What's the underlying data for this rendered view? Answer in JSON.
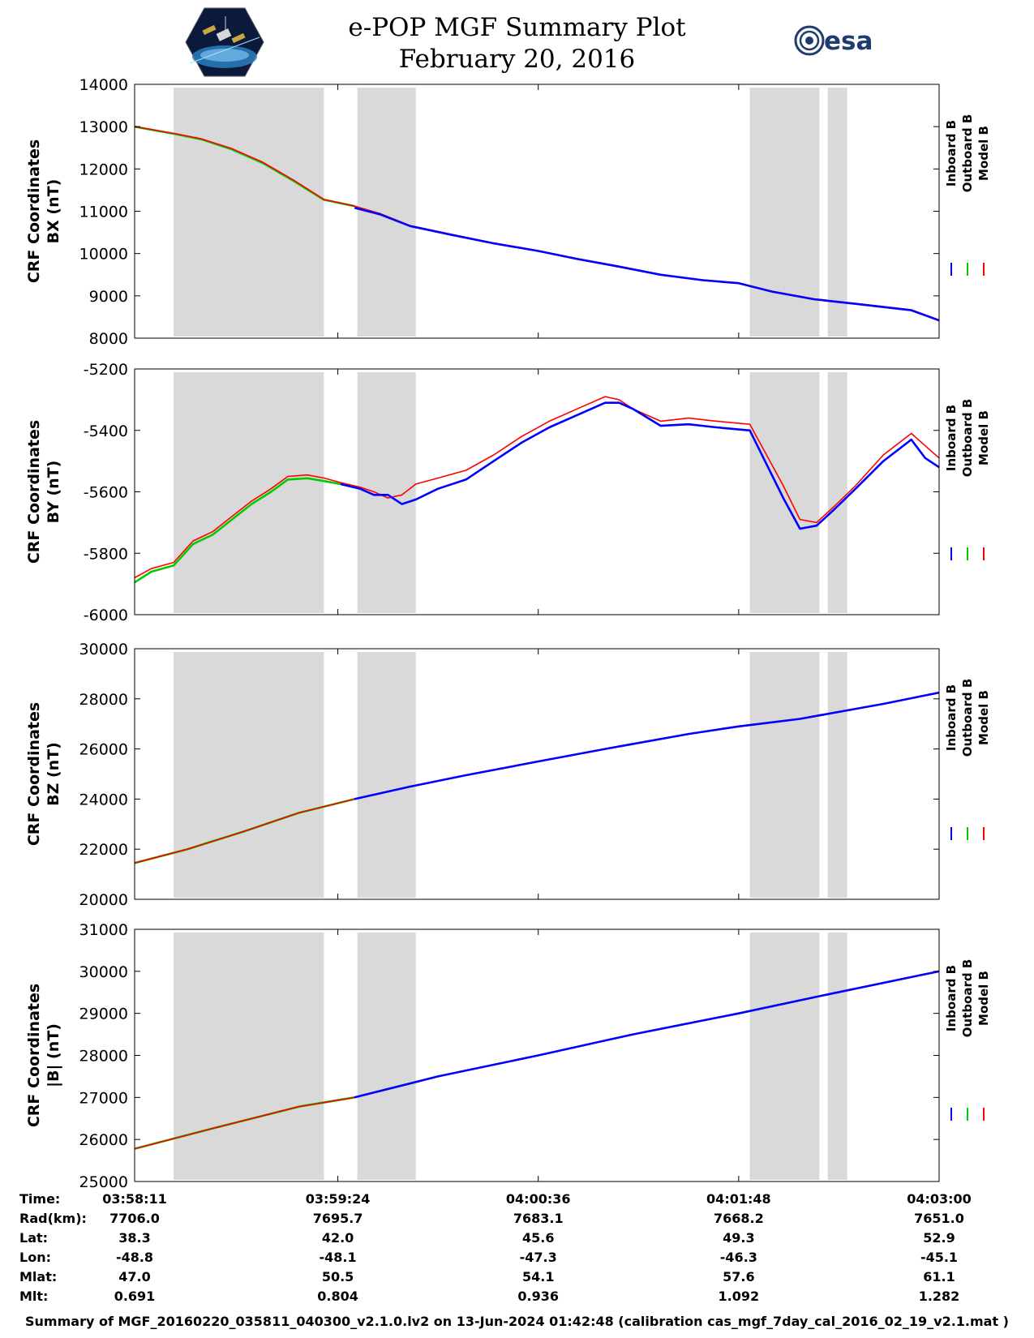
{
  "header": {
    "title_line1": "e-POP MGF Summary Plot",
    "title_line2": "February 20, 2016",
    "logo_left": "cassiope-mission-logo",
    "logo_right_text": "esa"
  },
  "legend": {
    "labels": [
      "Inboard B",
      "Outboard B",
      "Model B"
    ],
    "colors": [
      "#0000ff",
      "#00cc00",
      "#ff0000"
    ]
  },
  "shading": {
    "color": "#d9d9d9",
    "intervals": [
      [
        "03:58:25",
        "03:59:19"
      ],
      [
        "03:59:31",
        "03:59:52"
      ],
      [
        "04:01:52",
        "04:02:17"
      ],
      [
        "04:02:20",
        "04:02:27"
      ]
    ]
  },
  "chart_data": [
    {
      "type": "line",
      "ylabel_line1": "CRF Coordinates",
      "ylabel_line2": "BX (nT)",
      "ylim": [
        8000,
        14000
      ],
      "yticks": [
        "8000",
        "9000",
        "10000",
        "11000",
        "12000",
        "13000",
        "14000"
      ],
      "x": [
        "03:58:11",
        "03:58:26",
        "03:58:35",
        "03:58:46",
        "03:58:57",
        "03:59:08",
        "03:59:19",
        "03:59:30",
        "03:59:39",
        "03:59:50",
        "04:00:05",
        "04:00:20",
        "04:00:36",
        "04:00:50",
        "04:01:05",
        "04:01:20",
        "04:01:35",
        "04:01:48",
        "04:02:00",
        "04:02:15",
        "04:02:30",
        "04:02:50",
        "04:03:00"
      ],
      "series": [
        {
          "name": "Outboard B",
          "color": "#00cc00",
          "values": [
            13000,
            12820,
            12700,
            12460,
            12140,
            11720,
            11270,
            11120,
            null,
            null,
            null,
            null,
            null,
            null,
            null,
            null,
            null,
            null,
            null,
            null,
            null,
            null,
            null
          ]
        },
        {
          "name": "Model B",
          "color": "#ff0000",
          "values": [
            13000,
            12830,
            12710,
            12480,
            12160,
            11740,
            11280,
            11120,
            10950,
            10660,
            10450,
            10250,
            10070,
            9880,
            9700,
            9500,
            9380,
            9300,
            9110,
            8930,
            8820,
            8670,
            8430
          ]
        },
        {
          "name": "Inboard B",
          "color": "#0000ff",
          "values": [
            null,
            null,
            null,
            null,
            null,
            null,
            null,
            11080,
            10930,
            10650,
            10440,
            10240,
            10060,
            9870,
            9690,
            9500,
            9370,
            9300,
            9100,
            8920,
            8810,
            8660,
            8420
          ]
        }
      ]
    },
    {
      "type": "line",
      "ylabel_line1": "CRF Coordinates",
      "ylabel_line2": "BY (nT)",
      "ylim": [
        -6000,
        -5200
      ],
      "yticks": [
        "-6000",
        "-5800",
        "-5600",
        "-5400",
        "-5200"
      ],
      "x": [
        "03:58:11",
        "03:58:17",
        "03:58:25",
        "03:58:32",
        "03:58:39",
        "03:58:46",
        "03:58:53",
        "03:59:00",
        "03:59:06",
        "03:59:13",
        "03:59:19",
        "03:59:25",
        "03:59:32",
        "03:59:37",
        "03:59:42",
        "03:59:47",
        "03:59:52",
        "04:00:00",
        "04:00:10",
        "04:00:20",
        "04:00:30",
        "04:00:40",
        "04:00:50",
        "04:01:00",
        "04:01:05",
        "04:01:10",
        "04:01:20",
        "04:01:30",
        "04:01:40",
        "04:01:52",
        "04:01:58",
        "04:02:04",
        "04:02:10",
        "04:02:16",
        "04:02:22",
        "04:02:30",
        "04:02:40",
        "04:02:50",
        "04:02:55",
        "04:03:00"
      ],
      "series": [
        {
          "name": "Outboard B",
          "color": "#00cc00",
          "values": [
            -5895,
            -5860,
            -5840,
            -5770,
            -5740,
            -5690,
            -5640,
            -5600,
            -5560,
            -5556,
            -5565,
            -5575,
            null,
            null,
            null,
            null,
            null,
            null,
            null,
            null,
            null,
            null,
            null,
            null,
            null,
            null,
            null,
            null,
            null,
            null,
            null,
            null,
            null,
            null,
            null,
            null,
            null,
            null,
            null,
            null
          ]
        },
        {
          "name": "Model B",
          "color": "#ff0000",
          "values": [
            -5880,
            -5850,
            -5830,
            -5760,
            -5730,
            -5680,
            -5630,
            -5590,
            -5550,
            -5545,
            -5555,
            -5570,
            -5585,
            -5600,
            -5620,
            -5610,
            -5575,
            -5555,
            -5530,
            -5480,
            -5420,
            -5370,
            -5330,
            -5290,
            -5300,
            -5330,
            -5370,
            -5360,
            -5370,
            -5380,
            -5480,
            -5580,
            -5690,
            -5700,
            -5650,
            -5580,
            -5480,
            -5410,
            -5450,
            -5490
          ]
        },
        {
          "name": "Inboard B",
          "color": "#0000ff",
          "values": [
            null,
            null,
            null,
            null,
            null,
            null,
            null,
            null,
            null,
            null,
            null,
            -5575,
            -5590,
            -5610,
            -5610,
            -5640,
            -5625,
            -5590,
            -5560,
            -5500,
            -5440,
            -5390,
            -5350,
            -5310,
            -5310,
            -5330,
            -5385,
            -5380,
            -5390,
            -5400,
            -5510,
            -5620,
            -5720,
            -5710,
            -5660,
            -5590,
            -5500,
            -5430,
            -5490,
            -5520
          ]
        }
      ]
    },
    {
      "type": "line",
      "ylabel_line1": "CRF Coordinates",
      "ylabel_line2": "BZ (nT)",
      "ylim": [
        20000,
        30000
      ],
      "yticks": [
        "20000",
        "22000",
        "24000",
        "26000",
        "28000",
        "30000"
      ],
      "x": [
        "03:58:11",
        "03:58:30",
        "03:58:50",
        "03:59:10",
        "03:59:30",
        "03:59:50",
        "04:00:10",
        "04:00:36",
        "04:01:00",
        "04:01:30",
        "04:01:48",
        "04:02:10",
        "04:02:40",
        "04:03:00"
      ],
      "series": [
        {
          "name": "Outboard B",
          "color": "#00cc00",
          "values": [
            21450,
            22000,
            22700,
            23450,
            24000,
            null,
            null,
            null,
            null,
            null,
            null,
            null,
            null,
            null
          ]
        },
        {
          "name": "Model B",
          "color": "#ff0000",
          "values": [
            21450,
            22000,
            22700,
            23450,
            24000,
            24500,
            24950,
            25500,
            26000,
            26600,
            26900,
            27200,
            27800,
            28250
          ]
        },
        {
          "name": "Inboard B",
          "color": "#0000ff",
          "values": [
            null,
            null,
            null,
            null,
            24000,
            24500,
            24950,
            25500,
            26000,
            26600,
            26900,
            27200,
            27800,
            28250
          ]
        }
      ]
    },
    {
      "type": "line",
      "ylabel_line1": "CRF Coordinates",
      "ylabel_line2": "|B| (nT)",
      "ylim": [
        25000,
        31000
      ],
      "yticks": [
        "25000",
        "26000",
        "27000",
        "28000",
        "29000",
        "30000",
        "31000"
      ],
      "x": [
        "03:58:11",
        "03:58:40",
        "03:59:10",
        "03:59:30",
        "04:00:00",
        "04:00:36",
        "04:01:10",
        "04:01:48",
        "04:02:20",
        "04:03:00"
      ],
      "series": [
        {
          "name": "Outboard B",
          "color": "#00cc00",
          "values": [
            25780,
            26280,
            26780,
            27000,
            null,
            null,
            null,
            null,
            null,
            null
          ]
        },
        {
          "name": "Model B",
          "color": "#ff0000",
          "values": [
            25780,
            26280,
            26780,
            27000,
            27500,
            28000,
            28500,
            29000,
            29450,
            30000
          ]
        },
        {
          "name": "Inboard B",
          "color": "#0000ff",
          "values": [
            null,
            null,
            null,
            27000,
            27500,
            28000,
            28500,
            29000,
            29450,
            30000
          ]
        }
      ]
    }
  ],
  "x_axis": {
    "start": "03:58:11",
    "end": "04:03:00",
    "ticks": [
      "03:58:11",
      "03:59:24",
      "04:00:36",
      "04:01:48",
      "04:03:00"
    ]
  },
  "orbit_table": {
    "rows": [
      {
        "label": "Time:",
        "values": [
          "03:58:11",
          "03:59:24",
          "04:00:36",
          "04:01:48",
          "04:03:00"
        ]
      },
      {
        "label": "Rad(km):",
        "values": [
          "7706.0",
          "7695.7",
          "7683.1",
          "7668.2",
          "7651.0"
        ]
      },
      {
        "label": "Lat:",
        "values": [
          "38.3",
          "42.0",
          "45.6",
          "49.3",
          "52.9"
        ]
      },
      {
        "label": "Lon:",
        "values": [
          "-48.8",
          "-48.1",
          "-47.3",
          "-46.3",
          "-45.1"
        ]
      },
      {
        "label": "Mlat:",
        "values": [
          "47.0",
          "50.5",
          "54.1",
          "57.6",
          "61.1"
        ]
      },
      {
        "label": "Mlt:",
        "values": [
          "0.691",
          "0.804",
          "0.936",
          "1.092",
          "1.282"
        ]
      }
    ]
  },
  "footer": {
    "text": "Summary of MGF_20160220_035811_040300_v2.1.0.lv2 on 13-Jun-2024 01:42:48 (calibration cas_mgf_7day_cal_2016_02_19_v2.1.mat )"
  }
}
